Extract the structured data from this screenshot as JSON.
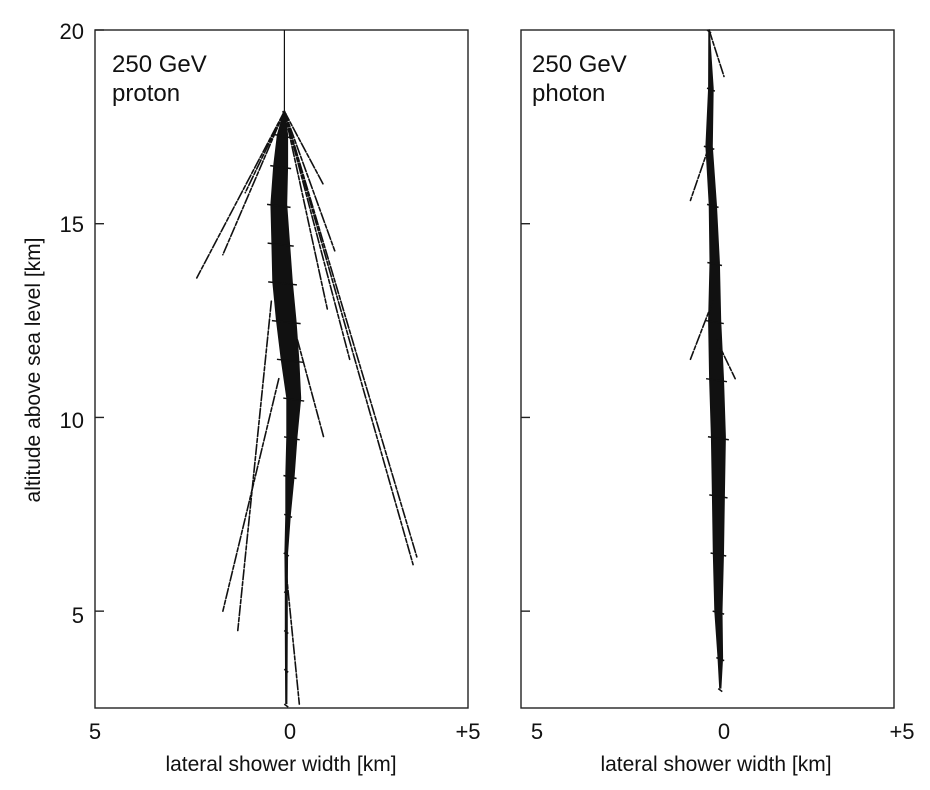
{
  "chart_data": [
    {
      "type": "scatter",
      "panel_label": [
        "250 GeV",
        "proton"
      ],
      "xlabel": "lateral shower width [km]",
      "ylabel": "altitude above sea level [km]",
      "xlim": [
        -5,
        5
      ],
      "ylim": [
        2.5,
        20
      ],
      "x_tick_labels": [
        "5",
        "0",
        "+5"
      ],
      "y_ticks": [
        20,
        15,
        10,
        5
      ],
      "y_tick_labels": [
        "20",
        "15",
        "10",
        "5"
      ],
      "first_interaction_altitude": 17.9,
      "core": [
        {
          "y": 17.9,
          "x": -0.15,
          "w": 0.05
        },
        {
          "y": 17.3,
          "x": -0.2,
          "w": 0.3
        },
        {
          "y": 16.5,
          "x": -0.25,
          "w": 0.4
        },
        {
          "y": 15.5,
          "x": -0.3,
          "w": 0.45
        },
        {
          "y": 14.5,
          "x": -0.25,
          "w": 0.5
        },
        {
          "y": 13.5,
          "x": -0.2,
          "w": 0.55
        },
        {
          "y": 12.5,
          "x": -0.1,
          "w": 0.55
        },
        {
          "y": 11.5,
          "x": 0.0,
          "w": 0.5
        },
        {
          "y": 10.5,
          "x": 0.1,
          "w": 0.4
        },
        {
          "y": 9.5,
          "x": 0.05,
          "w": 0.3
        },
        {
          "y": 8.5,
          "x": 0.0,
          "w": 0.25
        },
        {
          "y": 7.5,
          "x": -0.05,
          "w": 0.15
        },
        {
          "y": 6.5,
          "x": -0.1,
          "w": 0.1
        },
        {
          "y": 5.5,
          "x": -0.1,
          "w": 0.08
        },
        {
          "y": 4.5,
          "x": -0.1,
          "w": 0.08
        },
        {
          "y": 3.5,
          "x": -0.1,
          "w": 0.07
        },
        {
          "y": 2.6,
          "x": -0.1,
          "w": 0.06
        }
      ],
      "tracks": [
        {
          "from": [
            -0.15,
            17.9
          ],
          "to": [
            -2.5,
            13.6
          ]
        },
        {
          "from": [
            -0.15,
            17.9
          ],
          "to": [
            -1.8,
            14.2
          ]
        },
        {
          "from": [
            -0.15,
            17.9
          ],
          "to": [
            -1.2,
            15.8
          ]
        },
        {
          "from": [
            -0.15,
            17.9
          ],
          "to": [
            3.4,
            6.4
          ]
        },
        {
          "from": [
            -0.15,
            17.9
          ],
          "to": [
            3.3,
            6.2
          ]
        },
        {
          "from": [
            -0.15,
            17.9
          ],
          "to": [
            1.2,
            14.3
          ]
        },
        {
          "from": [
            -0.15,
            17.9
          ],
          "to": [
            0.9,
            16.0
          ]
        },
        {
          "from": [
            -0.15,
            17.9
          ],
          "to": [
            1.6,
            11.5
          ]
        },
        {
          "from": [
            -0.15,
            17.9
          ],
          "to": [
            1.0,
            12.8
          ]
        },
        {
          "from": [
            -0.5,
            13.0
          ],
          "to": [
            -1.4,
            4.5
          ]
        },
        {
          "from": [
            -0.3,
            11.0
          ],
          "to": [
            -1.8,
            5.0
          ]
        },
        {
          "from": [
            0.2,
            12.0
          ],
          "to": [
            0.9,
            9.5
          ]
        },
        {
          "from": [
            -0.1,
            6.0
          ],
          "to": [
            0.25,
            2.6
          ]
        }
      ]
    },
    {
      "type": "scatter",
      "panel_label": [
        "250 GeV",
        "photon"
      ],
      "xlabel": "lateral shower width [km]",
      "ylabel": "",
      "xlim": [
        -5,
        5
      ],
      "ylim": [
        2.5,
        20
      ],
      "x_tick_labels": [
        "5",
        "0",
        "+5"
      ],
      "y_ticks": [
        15,
        10,
        5
      ],
      "first_interaction_altitude": 20.0,
      "core": [
        {
          "y": 20.0,
          "x": -0.4,
          "w": 0.04
        },
        {
          "y": 18.5,
          "x": -0.35,
          "w": 0.15
        },
        {
          "y": 17.0,
          "x": -0.4,
          "w": 0.2
        },
        {
          "y": 15.5,
          "x": -0.3,
          "w": 0.22
        },
        {
          "y": 14.0,
          "x": -0.25,
          "w": 0.28
        },
        {
          "y": 12.5,
          "x": -0.25,
          "w": 0.35
        },
        {
          "y": 11.0,
          "x": -0.2,
          "w": 0.4
        },
        {
          "y": 9.5,
          "x": -0.15,
          "w": 0.4
        },
        {
          "y": 8.0,
          "x": -0.15,
          "w": 0.35
        },
        {
          "y": 6.5,
          "x": -0.15,
          "w": 0.3
        },
        {
          "y": 5.0,
          "x": -0.15,
          "w": 0.22
        },
        {
          "y": 3.8,
          "x": -0.1,
          "w": 0.15
        },
        {
          "y": 3.0,
          "x": -0.1,
          "w": 0.06
        }
      ],
      "tracks": [
        {
          "from": [
            -0.4,
            20.0
          ],
          "to": [
            0.0,
            18.8
          ]
        },
        {
          "from": [
            -0.4,
            17.0
          ],
          "to": [
            -0.9,
            15.6
          ]
        },
        {
          "from": [
            -0.3,
            13.0
          ],
          "to": [
            -0.9,
            11.5
          ]
        },
        {
          "from": [
            -0.2,
            12.0
          ],
          "to": [
            0.3,
            11.0
          ]
        }
      ]
    }
  ]
}
